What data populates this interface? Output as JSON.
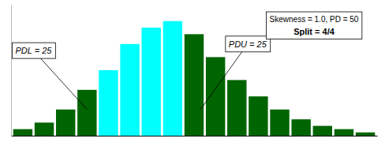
{
  "chart_data": {
    "type": "bar",
    "categories": [
      null,
      null,
      null,
      null,
      null,
      null,
      null,
      null,
      null,
      null,
      null,
      null,
      null,
      null,
      null,
      null,
      null
    ],
    "values": [
      2,
      4,
      8,
      14,
      20,
      28,
      33,
      35,
      31,
      24,
      17,
      12,
      8,
      5,
      3,
      2,
      1
    ],
    "colors": [
      "#006400",
      "#006400",
      "#006400",
      "#006400",
      "#00FFFF",
      "#00FFFF",
      "#00FFFF",
      "#00FFFF",
      "#006400",
      "#006400",
      "#006400",
      "#006400",
      "#006400",
      "#006400",
      "#006400",
      "#006400",
      "#006400"
    ],
    "ylim": [
      0,
      40
    ],
    "tick_labels": false,
    "annotations": [
      "PDL = 25",
      "PDU = 25",
      "Skewness = 1.0, PD = 50",
      "Split = 4/4"
    ]
  }
}
